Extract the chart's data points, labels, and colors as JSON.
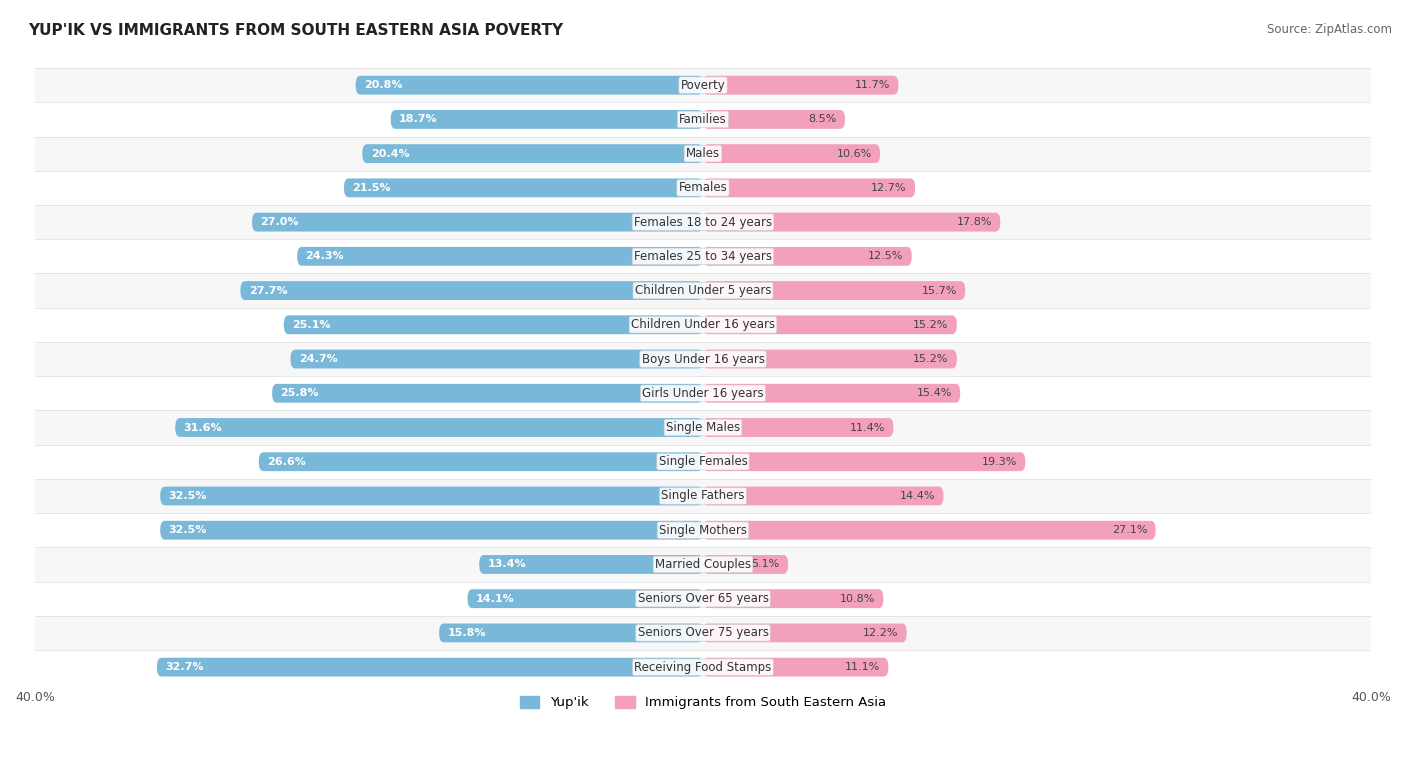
{
  "title": "YUP'IK VS IMMIGRANTS FROM SOUTH EASTERN ASIA POVERTY",
  "source": "Source: ZipAtlas.com",
  "categories": [
    "Poverty",
    "Families",
    "Males",
    "Females",
    "Females 18 to 24 years",
    "Females 25 to 34 years",
    "Children Under 5 years",
    "Children Under 16 years",
    "Boys Under 16 years",
    "Girls Under 16 years",
    "Single Males",
    "Single Females",
    "Single Fathers",
    "Single Mothers",
    "Married Couples",
    "Seniors Over 65 years",
    "Seniors Over 75 years",
    "Receiving Food Stamps"
  ],
  "yupik_values": [
    20.8,
    18.7,
    20.4,
    21.5,
    27.0,
    24.3,
    27.7,
    25.1,
    24.7,
    25.8,
    31.6,
    26.6,
    32.5,
    32.5,
    13.4,
    14.1,
    15.8,
    32.7
  ],
  "immigrant_values": [
    11.7,
    8.5,
    10.6,
    12.7,
    17.8,
    12.5,
    15.7,
    15.2,
    15.2,
    15.4,
    11.4,
    19.3,
    14.4,
    27.1,
    5.1,
    10.8,
    12.2,
    11.1
  ],
  "yupik_color": "#7ab8d9",
  "immigrant_color": "#f2a0bb",
  "yupik_label": "Yup'ik",
  "immigrant_label": "Immigrants from South Eastern Asia",
  "xlim": 40.0,
  "background_color": "#ffffff",
  "row_light_color": "#f7f7f7",
  "row_dark_color": "#ececec",
  "row_border_color": "#dddddd"
}
